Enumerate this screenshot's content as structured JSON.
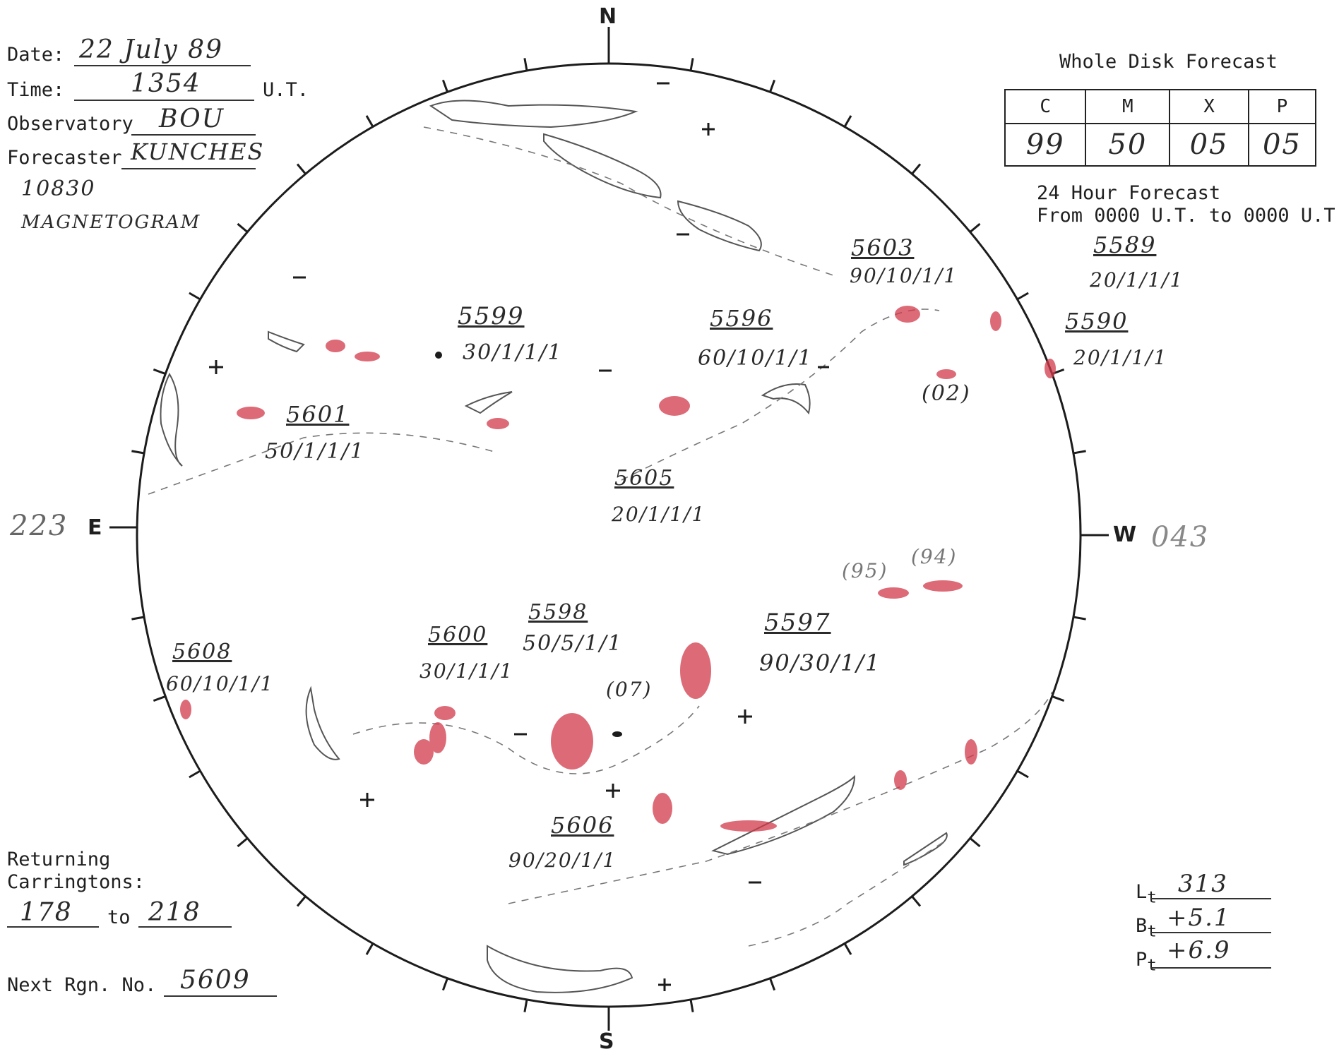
{
  "header": {
    "date_label": "Date:",
    "date_value": "22 July 89",
    "time_label": "Time:",
    "time_value": "1354",
    "time_unit": "U.T.",
    "observatory_label": "Observatory",
    "observatory_value": "BOU",
    "forecaster_label": "Forecaster",
    "forecaster_value": "KUNCHES",
    "note_line1": "10830",
    "note_line2": "MAGNETOGRAM"
  },
  "forecast": {
    "title": "Whole Disk Forecast",
    "columns": [
      "C",
      "M",
      "X",
      "P"
    ],
    "values": [
      "99",
      "50",
      "05",
      "05"
    ],
    "period_line1": "24 Hour Forecast",
    "period_line2": "From 0000 U.T. to 0000 U.T."
  },
  "disk": {
    "north": "N",
    "south": "S",
    "east": "E",
    "west": "W",
    "east_longitude": "223",
    "west_longitude": "043",
    "regions": [
      {
        "number": "5603",
        "classification": "90/10/1/1"
      },
      {
        "number": "5589",
        "classification": "20/1/1/1"
      },
      {
        "number": "5590",
        "classification": "20/1/1/1"
      },
      {
        "number": "5599",
        "classification": "30/1/1/1"
      },
      {
        "number": "5596",
        "classification": "60/10/1/1"
      },
      {
        "number": "5601",
        "classification": "50/1/1/1"
      },
      {
        "number": "5605",
        "classification": "20/1/1/1"
      },
      {
        "number": "5598",
        "classification": "50/5/1/1"
      },
      {
        "number": "5600",
        "classification": "30/1/1/1"
      },
      {
        "number": "5608",
        "classification": "60/10/1/1"
      },
      {
        "number": "5597",
        "classification": "90/30/1/1"
      },
      {
        "number": "5606",
        "classification": "90/20/1/1"
      }
    ],
    "old_regions": [
      "(02)",
      "(95)",
      "(94)",
      "(07)"
    ]
  },
  "carringtons": {
    "label_line1": "Returning",
    "label_line2": "Carringtons:",
    "from": "178",
    "to_label": "to",
    "to": "218"
  },
  "next_region": {
    "label": "Next Rgn. No.",
    "value": "5609"
  },
  "orientation": {
    "l_label": "L",
    "b_label": "B",
    "p_label": "P",
    "subscript": "t",
    "l_value": "313",
    "b_value": "+5.1",
    "p_value": "+6.9"
  },
  "colors": {
    "ink": "#2a2a2a",
    "plage_red": "#d23a4a"
  }
}
